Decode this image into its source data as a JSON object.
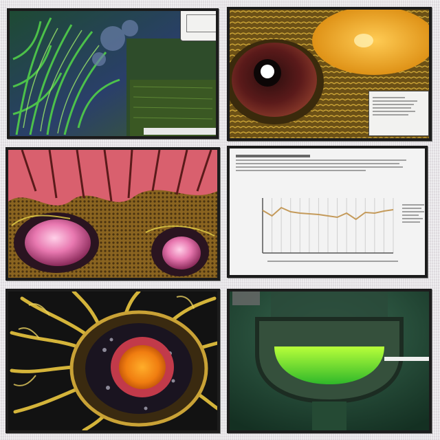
{
  "panels": [
    {
      "name": "green-fern-panel"
    },
    {
      "name": "brown-eye-panel"
    },
    {
      "name": "pink-eyes-creature-panel"
    },
    {
      "name": "document-chart-panel"
    },
    {
      "name": "yellow-tendril-orb-panel"
    },
    {
      "name": "green-glow-panel"
    }
  ],
  "colors": {
    "frame": "#1c1c1c",
    "background": "#e9e6ea",
    "chart_line": "#c49a5a"
  },
  "chart_data": {
    "type": "line",
    "title": "",
    "xlabel": "",
    "ylabel": "",
    "x": [
      1,
      2,
      3,
      4,
      5,
      6,
      7,
      8,
      9,
      10,
      11,
      12,
      13,
      14,
      15
    ],
    "series": [
      {
        "values": [
          6.2,
          5.4,
          6.6,
          6.0,
          5.8,
          5.7,
          5.6,
          5.4,
          5.2,
          5.8,
          4.9,
          5.9,
          5.8,
          6.1,
          6.3
        ]
      }
    ],
    "xlim": [
      1,
      15
    ],
    "ylim": [
      0,
      8
    ],
    "grid": true
  }
}
